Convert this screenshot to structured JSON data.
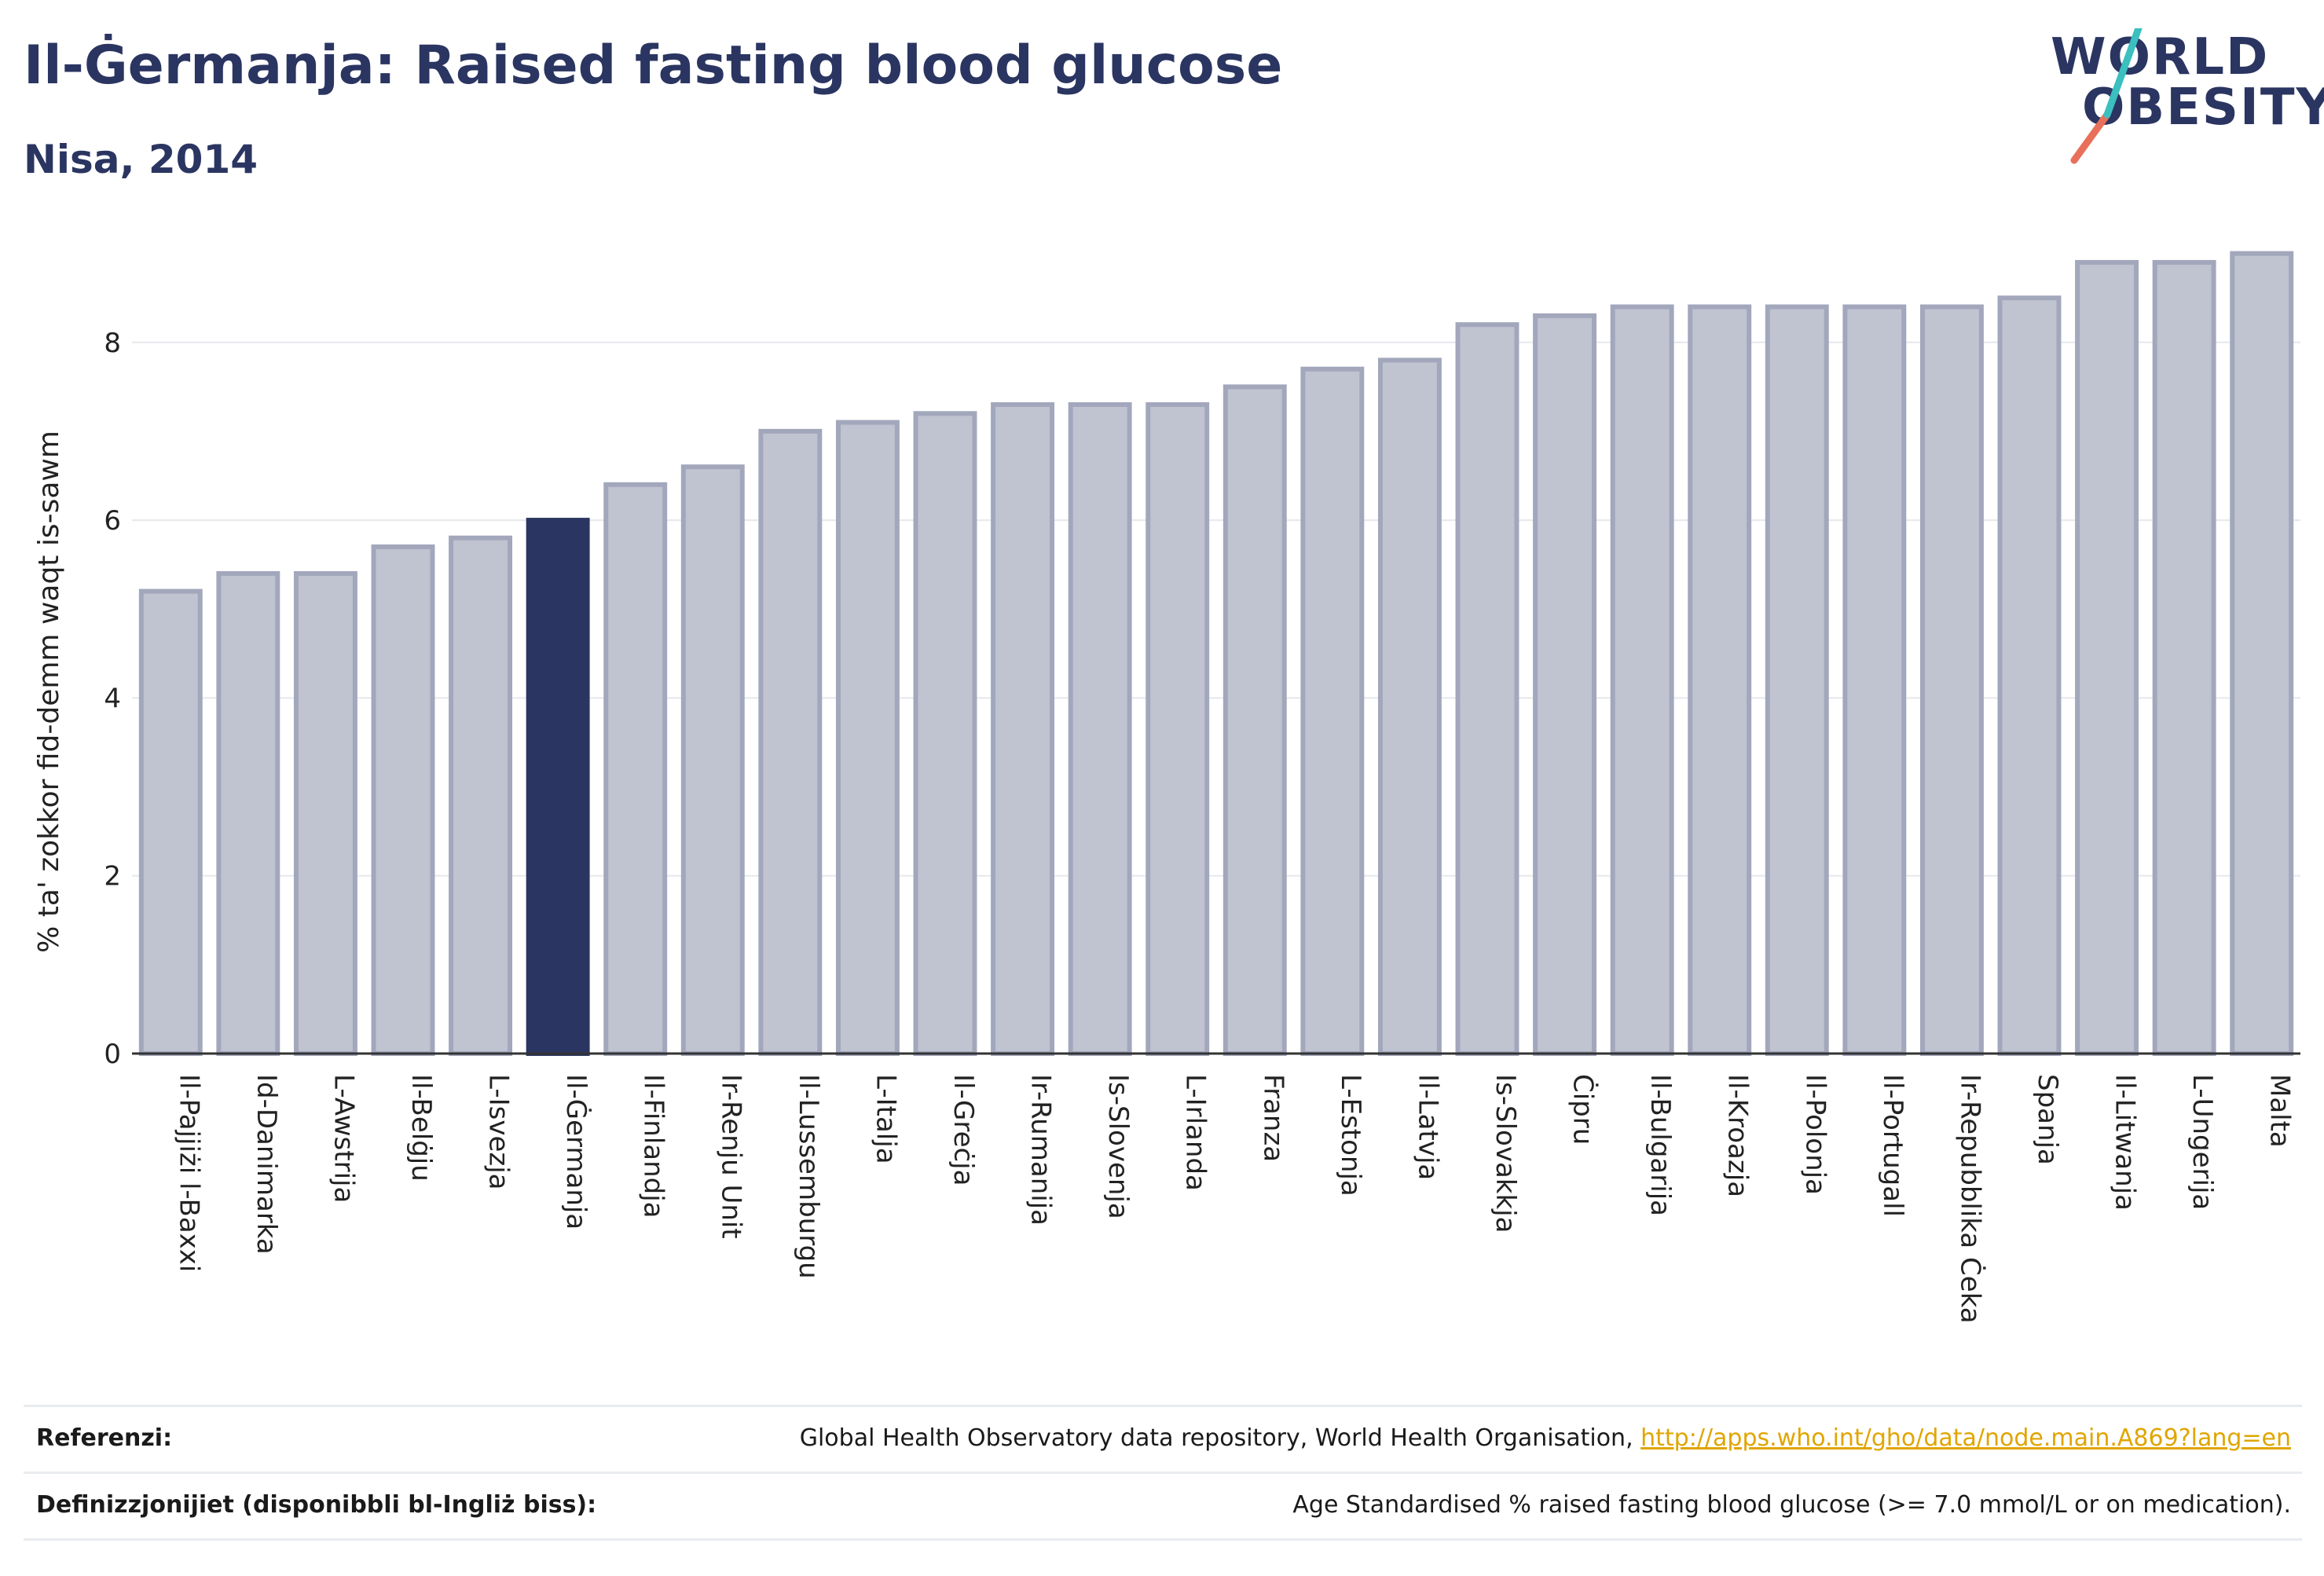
{
  "header": {
    "title": "Il-Ġermanja: Raised fasting blood glucose",
    "subtitle": "Nisa, 2014"
  },
  "logo": {
    "line1": "WORLD",
    "line2": "OBESITY",
    "colors": {
      "navy": "#2b3561",
      "teal": "#3bbfbf",
      "coral": "#e8705a"
    }
  },
  "chart_data": {
    "type": "bar",
    "ylabel": "% ta' zokkor fid-demm waqt is-sawm",
    "xlabel": "",
    "ylim": [
      0,
      9.2
    ],
    "yticks": [
      0,
      2,
      4,
      6,
      8
    ],
    "grid": true,
    "highlight": "Il-Ġermanja",
    "colors": {
      "bar": "#c0c3d0",
      "bar_edge": "#a2a7bc",
      "highlight": "#2b3561"
    },
    "categories": [
      "Il-Pajjiżi l-Baxxi",
      "Id-Danimarka",
      "L-Awstrija",
      "Il-Belġju",
      "L-Isvezja",
      "Il-Ġermanja",
      "Il-Finlandja",
      "Ir-Renju Unit",
      "Il-Lussemburgu",
      "L-Italja",
      "Il-Greċja",
      "Ir-Rumanija",
      "Is-Slovenja",
      "L-Irlanda",
      "Franza",
      "L-Estonja",
      "Il-Latvja",
      "Is-Slovakkja",
      "Ċipru",
      "Il-Bulgarija",
      "Il-Kroazja",
      "Il-Polonja",
      "Il-Portugall",
      "Ir-Repubblika Ċeka",
      "Spanja",
      "Il-Litwanja",
      "L-Ungerija",
      "Malta"
    ],
    "values": [
      5.2,
      5.4,
      5.4,
      5.7,
      5.8,
      6.0,
      6.4,
      6.6,
      7.0,
      7.1,
      7.2,
      7.3,
      7.3,
      7.3,
      7.5,
      7.7,
      7.8,
      8.2,
      8.3,
      8.4,
      8.4,
      8.4,
      8.4,
      8.4,
      8.5,
      8.9,
      8.9,
      9.0
    ]
  },
  "references": {
    "ref_label": "Referenzi:",
    "ref_text": "Global Health Observatory data repository, World Health Organisation, ",
    "ref_link": "http://apps.who.int/gho/data/node.main.A869?lang=en",
    "def_label": "Definizzjonijiet (disponibbli bl-Ingliż biss):",
    "def_text": "Age Standardised % raised fasting blood glucose (>= 7.0 mmol/L or on medication)."
  }
}
